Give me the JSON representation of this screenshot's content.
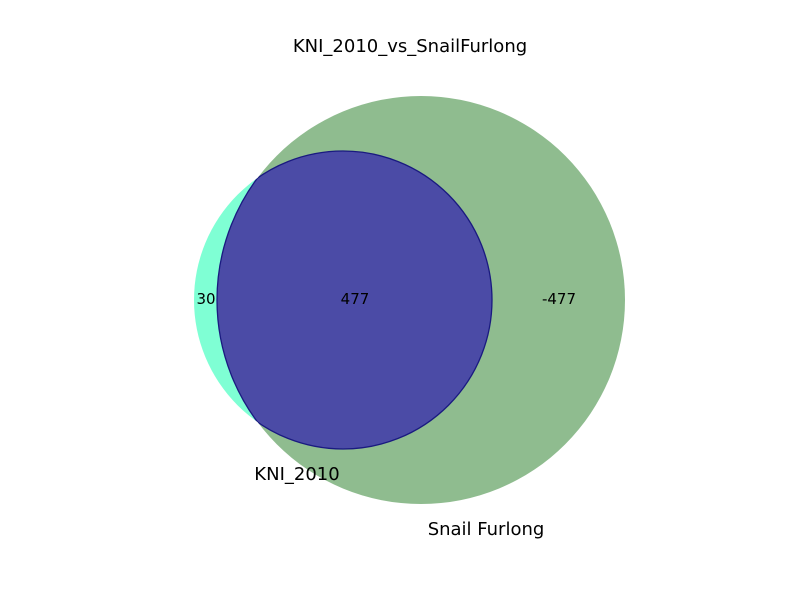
{
  "title": "KNI_2010_vs_SnailFurlong",
  "sets": [
    {
      "name": "KNI_2010",
      "color": "#7fffd4"
    },
    {
      "name": "Snail Furlong",
      "color": "#8fbc8f"
    }
  ],
  "intersection_color": "#4b4ba6",
  "intersection_edge_color": "#1a1a80",
  "regions": {
    "left_only": "30",
    "both": "477",
    "right_only": "-477"
  }
}
